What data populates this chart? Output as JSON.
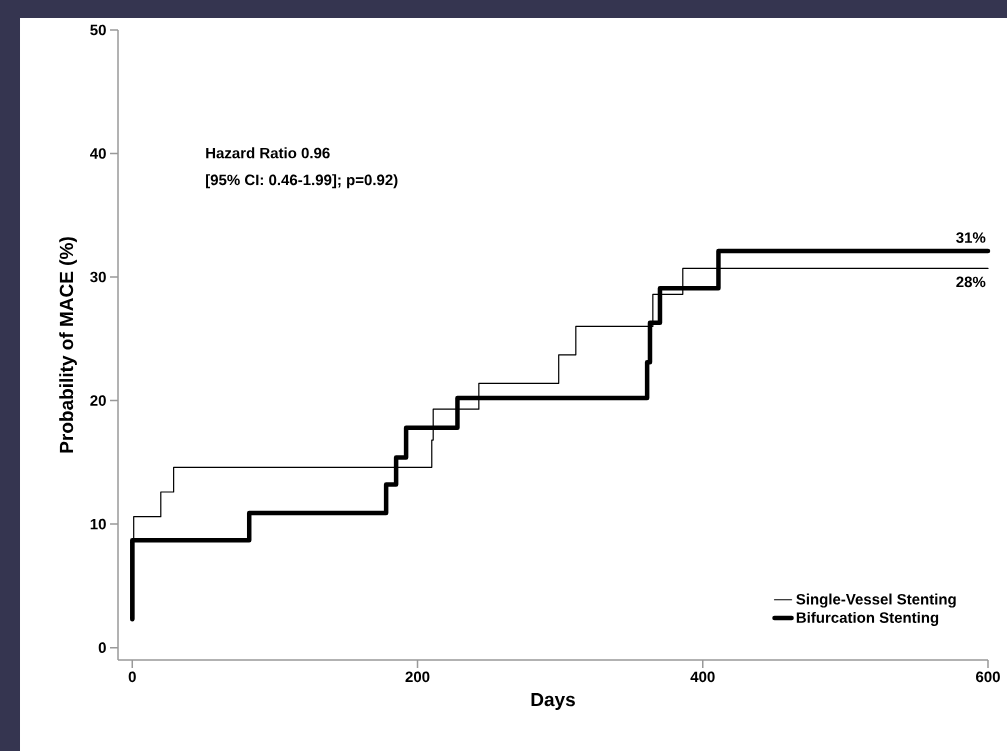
{
  "chart_data": {
    "type": "step",
    "xlabel": "Days",
    "ylabel": "Probability of MACE (%)",
    "x": [
      0,
      1,
      20,
      29,
      210,
      211,
      243,
      299,
      311,
      365,
      386,
      600
    ],
    "series": [
      {
        "name": "Single-Vessel Stenting",
        "color": "#000000",
        "values": [
          2.3,
          10.6,
          12.6,
          14.6,
          16.8,
          19.3,
          21.4,
          23.7,
          26.0,
          28.6,
          30.7,
          30.7
        ]
      },
      {
        "name": "Bifurcation Stenting",
        "color": "#000000",
        "x": [
          0,
          0.01,
          82,
          178,
          185,
          192,
          228,
          361,
          363,
          370,
          411,
          600
        ],
        "values": [
          2.3,
          8.7,
          10.9,
          13.2,
          15.4,
          17.8,
          20.2,
          23.1,
          26.3,
          29.1,
          32.1,
          32.1
        ]
      }
    ],
    "xlim": [
      -10,
      600
    ],
    "ylim": [
      -1,
      50
    ],
    "xticks": [
      0,
      200,
      400,
      600
    ],
    "yticks": [
      0,
      10,
      20,
      30,
      40,
      50
    ],
    "grid": false,
    "legend": "bottom right",
    "annotations": [
      "Hazard Ratio 0.96",
      "[95% CI: 0.46-1.99]; p=0.92)",
      {
        "text": "31%",
        "x": 600,
        "y": 32.1
      },
      {
        "text": "28%",
        "x": 600,
        "y": 30.7
      }
    ]
  }
}
